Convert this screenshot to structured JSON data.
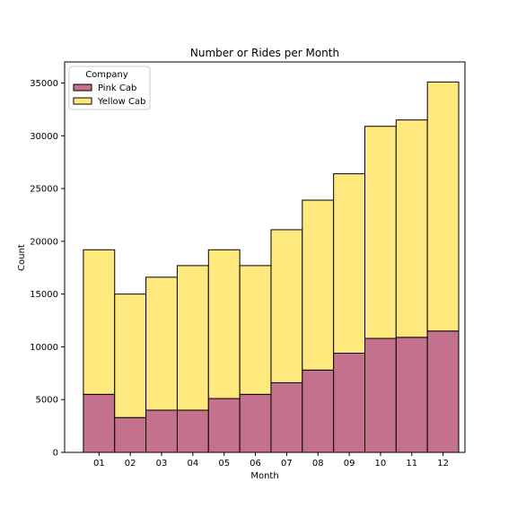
{
  "chart_data": {
    "type": "bar",
    "stacked": true,
    "title": "Number or Rides per Month",
    "xlabel": "Month",
    "ylabel": "Count",
    "categories": [
      "01",
      "02",
      "03",
      "04",
      "05",
      "06",
      "07",
      "08",
      "09",
      "10",
      "11",
      "12"
    ],
    "series": [
      {
        "name": "Pink Cab",
        "color": "#c4718d",
        "values": [
          5500,
          3300,
          4000,
          4000,
          5100,
          5500,
          6600,
          7800,
          9400,
          10800,
          10900,
          11500
        ]
      },
      {
        "name": "Yellow Cab",
        "color": "#ffe97f",
        "values": [
          13700,
          11700,
          12600,
          13700,
          14100,
          12200,
          14500,
          16100,
          17000,
          20100,
          20600,
          23600
        ]
      }
    ],
    "ylim": [
      0,
      37000
    ],
    "yticks": [
      0,
      5000,
      10000,
      15000,
      20000,
      25000,
      30000,
      35000
    ],
    "grid": false,
    "legend": {
      "title": "Company",
      "placement": "upper-left"
    }
  }
}
